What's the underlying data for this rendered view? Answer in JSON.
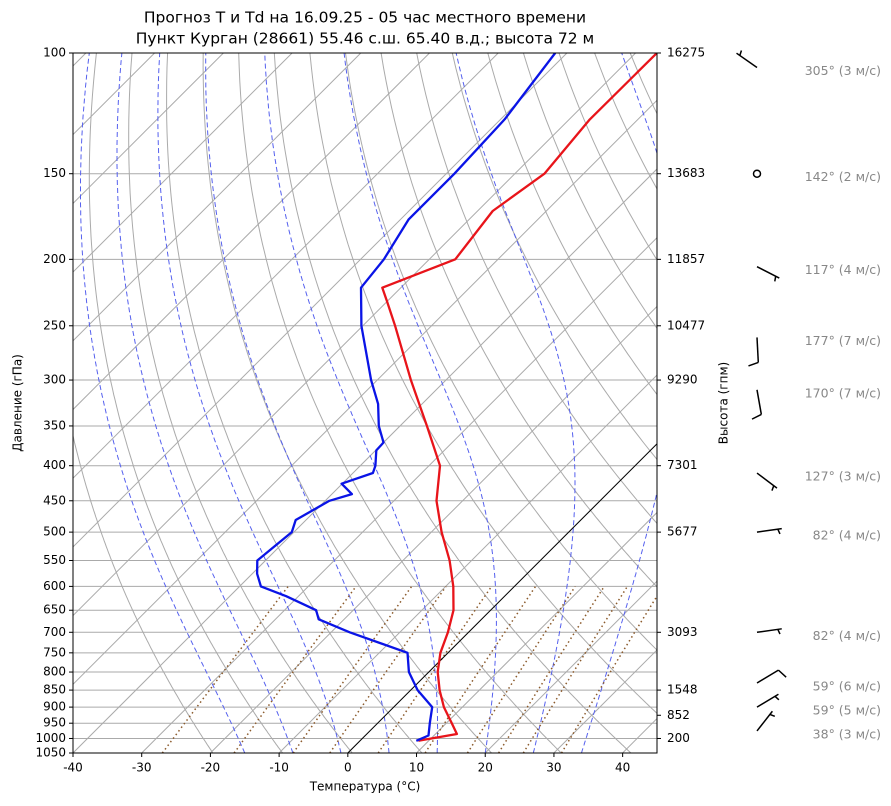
{
  "chart_data": {
    "type": "skewt",
    "title": "Прогноз T и Td на 16.09.25 - 05 час местного времени",
    "subtitle": "Пункт Курган (28661) 55.46 с.ш. 65.40 в.д.; высота 72 м",
    "xlabel": "Температура (°C)",
    "ylabel": "Давление (гПа)",
    "y2label": "Высота (гпм)",
    "xlim": [
      -40,
      45
    ],
    "xticks": [
      -40,
      -30,
      -20,
      -10,
      0,
      10,
      20,
      30,
      40
    ],
    "ylim": [
      1050,
      100
    ],
    "yticks": [
      100,
      150,
      200,
      250,
      300,
      350,
      400,
      450,
      500,
      550,
      600,
      650,
      700,
      750,
      800,
      850,
      900,
      950,
      1000,
      1050
    ],
    "log_scale": true,
    "grid": true,
    "heights": {
      "pressure": [
        100,
        150,
        200,
        250,
        300,
        400,
        500,
        700,
        850,
        925,
        1000
      ],
      "values": [
        16275,
        13683,
        11857,
        10477,
        9290,
        7301,
        5677,
        3093,
        1548,
        852,
        200
      ]
    },
    "series": [
      {
        "color": "#e8141a",
        "pressure": [
          1008,
          985,
          950,
          900,
          850,
          800,
          750,
          700,
          650,
          600,
          550,
          500,
          450,
          400,
          350,
          300,
          250,
          230,
          220,
          200,
          170,
          150,
          125,
          100
        ],
        "values": [
          8.5,
          13.1,
          10.8,
          7.3,
          4.2,
          1.3,
          -1.1,
          -3.0,
          -5.4,
          -8.9,
          -13.2,
          -18.5,
          -23.8,
          -28.4,
          -36.1,
          -45.1,
          -55.3,
          -60.1,
          -62.7,
          -56.2,
          -57.8,
          -55.7,
          -57.0,
          -56.9
        ]
      },
      {
        "color": "#0a14e6",
        "pressure": [
          1008,
          990,
          950,
          900,
          850,
          800,
          750,
          700,
          670,
          650,
          620,
          600,
          575,
          550,
          500,
          480,
          450,
          440,
          425,
          410,
          400,
          380,
          370,
          350,
          325,
          300,
          250,
          220,
          200,
          175,
          150,
          125,
          100
        ],
        "values": [
          8.2,
          9.2,
          7.6,
          5.6,
          1.0,
          -2.9,
          -5.9,
          -17.3,
          -23.7,
          -25.4,
          -31.8,
          -36.9,
          -39.3,
          -41.2,
          -40.3,
          -41.5,
          -39.4,
          -37.1,
          -40.1,
          -37.1,
          -37.8,
          -39.9,
          -40.0,
          -43.1,
          -46.4,
          -50.9,
          -60.2,
          -65.8,
          -66.6,
          -68.8,
          -68.8,
          -69.4,
          -71.7
        ]
      }
    ],
    "winds": [
      {
        "pressure": 105,
        "direction": 305,
        "speed": 3,
        "label": "305° (3 м/с)"
      },
      {
        "pressure": 150,
        "direction": 142,
        "speed": 2,
        "label": "142° (2 м/с)"
      },
      {
        "pressure": 205,
        "direction": 117,
        "speed": 4,
        "label": "117° (4 м/с)"
      },
      {
        "pressure": 260,
        "direction": 177,
        "speed": 7,
        "label": "177° (7 м/с)"
      },
      {
        "pressure": 310,
        "direction": 170,
        "speed": 7,
        "label": "170° (7 м/с)"
      },
      {
        "pressure": 410,
        "direction": 127,
        "speed": 3,
        "label": "127° (3 м/с)"
      },
      {
        "pressure": 500,
        "direction": 82,
        "speed": 4,
        "label": "82° (4 м/с)"
      },
      {
        "pressure": 700,
        "direction": 82,
        "speed": 4,
        "label": "82° (4 м/с)"
      },
      {
        "pressure": 830,
        "direction": 59,
        "speed": 6,
        "label": "59° (6 м/с)"
      },
      {
        "pressure": 900,
        "direction": 59,
        "speed": 5,
        "label": "59° (5 м/с)"
      },
      {
        "pressure": 975,
        "direction": 38,
        "speed": 3,
        "label": "38° (3 м/с)"
      }
    ]
  }
}
